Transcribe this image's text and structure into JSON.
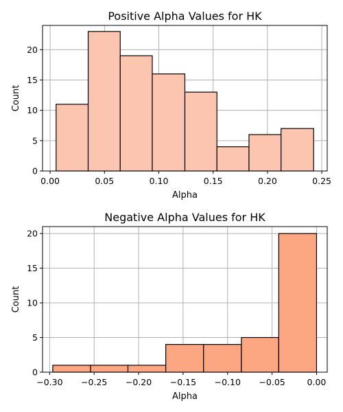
{
  "chart_data": [
    {
      "type": "bar",
      "title": "Positive Alpha Values for HK",
      "xlabel": "Alpha",
      "ylabel": "Count",
      "grid": true,
      "bar_color": "#fcc5b0",
      "xlim": [
        -0.007,
        0.255
      ],
      "ylim": [
        0,
        24
      ],
      "xticks": [
        0.0,
        0.05,
        0.1,
        0.15,
        0.2,
        0.25
      ],
      "xtick_labels": [
        "0.00",
        "0.05",
        "0.10",
        "0.15",
        "0.20",
        "0.25"
      ],
      "yticks": [
        0,
        5,
        10,
        15,
        20
      ],
      "ytick_labels": [
        "0",
        "5",
        "10",
        "15",
        "20"
      ],
      "bins": [
        {
          "x0": 0.0055,
          "x1": 0.035,
          "count": 11
        },
        {
          "x0": 0.035,
          "x1": 0.0645,
          "count": 23
        },
        {
          "x0": 0.0645,
          "x1": 0.094,
          "count": 19
        },
        {
          "x0": 0.094,
          "x1": 0.124,
          "count": 16
        },
        {
          "x0": 0.124,
          "x1": 0.1535,
          "count": 13
        },
        {
          "x0": 0.1535,
          "x1": 0.183,
          "count": 4
        },
        {
          "x0": 0.183,
          "x1": 0.2125,
          "count": 6
        },
        {
          "x0": 0.2125,
          "x1": 0.2425,
          "count": 7
        }
      ]
    },
    {
      "type": "bar",
      "title": "Negative Alpha Values for HK",
      "xlabel": "Alpha",
      "ylabel": "Count",
      "grid": true,
      "bar_color": "#fca682",
      "xlim": [
        -0.308,
        0.012
      ],
      "ylim": [
        0,
        21
      ],
      "xticks": [
        -0.3,
        -0.25,
        -0.2,
        -0.15,
        -0.1,
        -0.05,
        0.0
      ],
      "xtick_labels": [
        "−0.30",
        "−0.25",
        "−0.20",
        "−0.15",
        "−0.10",
        "−0.05",
        "0.00"
      ],
      "yticks": [
        0,
        5,
        10,
        15,
        20
      ],
      "ytick_labels": [
        "0",
        "5",
        "10",
        "15",
        "20"
      ],
      "bins": [
        {
          "x0": -0.2965,
          "x1": -0.254,
          "count": 1
        },
        {
          "x0": -0.254,
          "x1": -0.212,
          "count": 1
        },
        {
          "x0": -0.212,
          "x1": -0.1695,
          "count": 1
        },
        {
          "x0": -0.1695,
          "x1": -0.127,
          "count": 4
        },
        {
          "x0": -0.127,
          "x1": -0.0845,
          "count": 4
        },
        {
          "x0": -0.0845,
          "x1": -0.0425,
          "count": 5
        },
        {
          "x0": -0.0425,
          "x1": 0.0,
          "count": 20
        }
      ]
    }
  ]
}
